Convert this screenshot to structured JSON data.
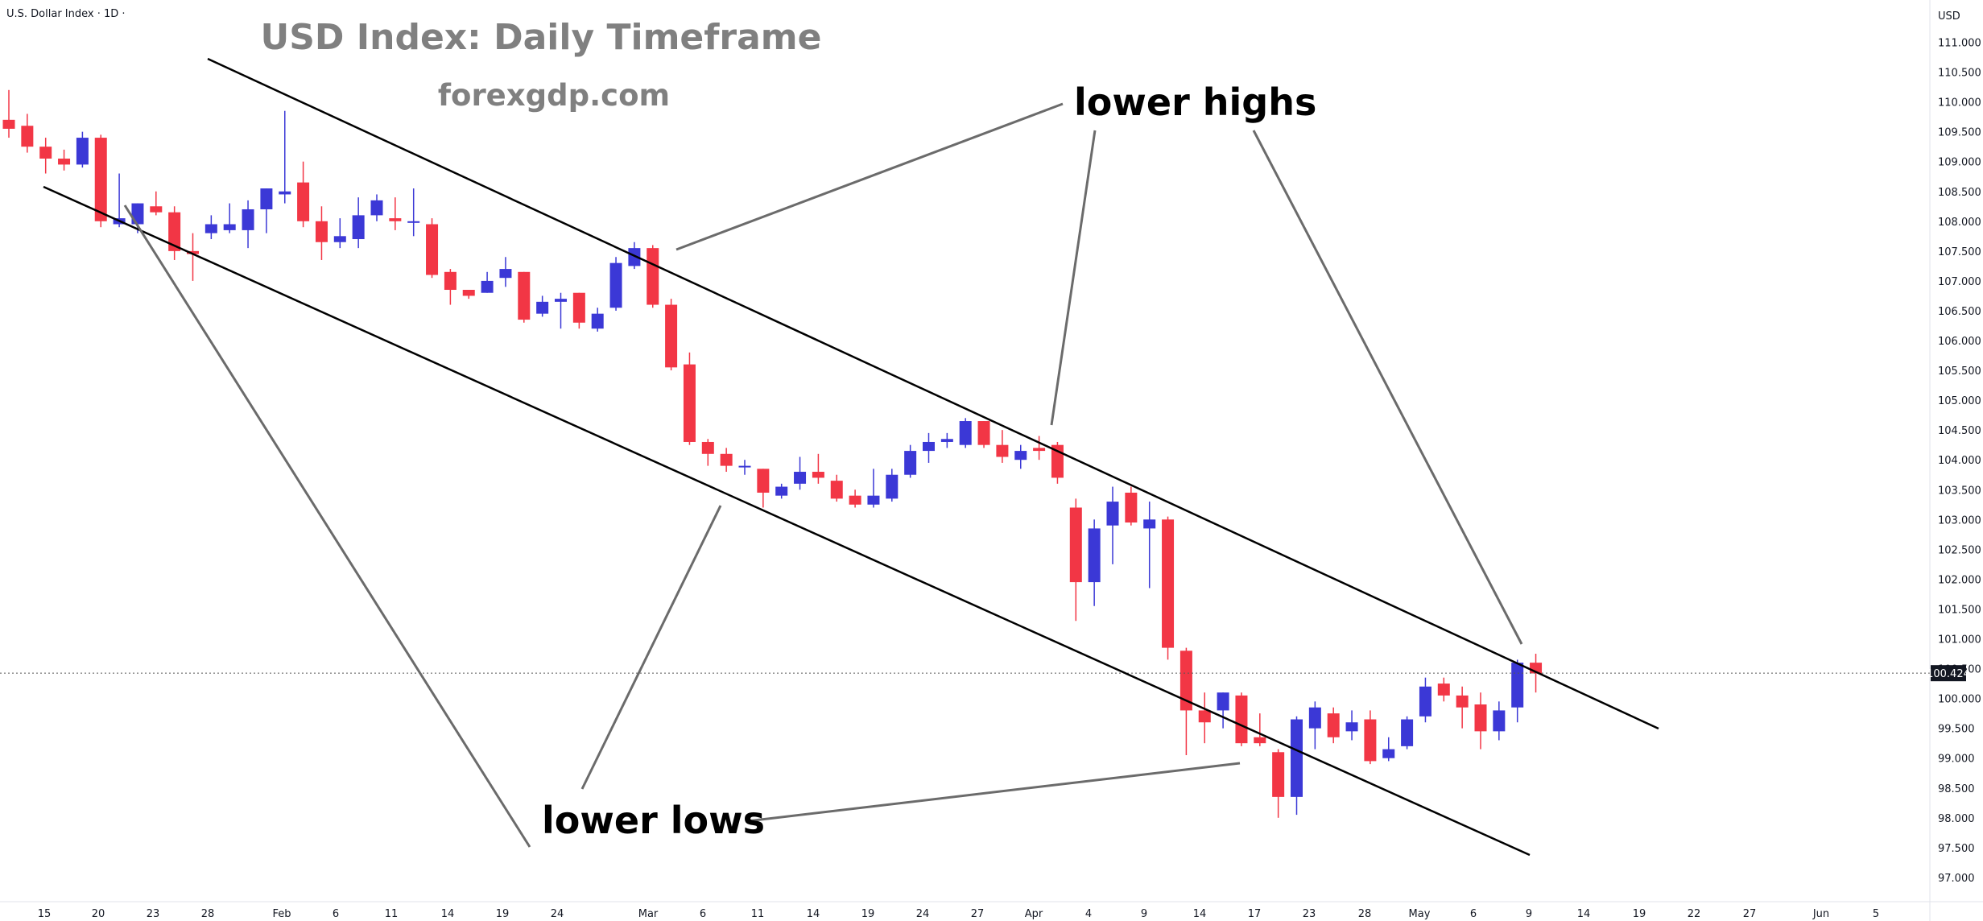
{
  "header": {
    "symbol_label": "U.S. Dollar Index · 1D ·",
    "currency_label": "USD"
  },
  "chart_data": {
    "type": "candlestick",
    "title": "USD Index: Daily Timeframe",
    "subtitle": "forexgdp.com",
    "current_price": "100.424",
    "ylim": [
      96.8,
      111.5
    ],
    "y_ticks": [
      "111.000",
      "110.500",
      "110.000",
      "109.500",
      "109.000",
      "108.500",
      "108.000",
      "107.500",
      "107.000",
      "106.500",
      "106.000",
      "105.500",
      "105.000",
      "104.500",
      "104.000",
      "103.500",
      "103.000",
      "102.500",
      "102.000",
      "101.500",
      "101.000",
      "100.500",
      "100.000",
      "99.500",
      "99.000",
      "98.500",
      "98.000",
      "97.500",
      "97.000"
    ],
    "x_ticks": [
      "15",
      "20",
      "23",
      "28",
      "Feb",
      "6",
      "11",
      "14",
      "19",
      "24",
      "Mar",
      "6",
      "11",
      "14",
      "19",
      "24",
      "27",
      "Apr",
      "4",
      "9",
      "14",
      "17",
      "23",
      "28",
      "May",
      "6",
      "9",
      "14",
      "19",
      "22",
      "27",
      "Jun",
      "5"
    ],
    "annotations": [
      "lower highs",
      "lower lows"
    ],
    "colors": {
      "up": "#3b38d6",
      "down": "#f23645",
      "line": "#000000",
      "arrow": "#6b6b6b"
    },
    "candles": [
      {
        "o": 109.7,
        "h": 110.2,
        "l": 109.4,
        "c": 109.55
      },
      {
        "o": 109.6,
        "h": 109.8,
        "l": 109.15,
        "c": 109.25
      },
      {
        "o": 109.25,
        "h": 109.4,
        "l": 108.8,
        "c": 109.05
      },
      {
        "o": 109.05,
        "h": 109.2,
        "l": 108.85,
        "c": 108.95
      },
      {
        "o": 108.95,
        "h": 109.5,
        "l": 108.9,
        "c": 109.4
      },
      {
        "o": 109.4,
        "h": 109.45,
        "l": 107.9,
        "c": 108.0
      },
      {
        "o": 107.95,
        "h": 108.8,
        "l": 107.9,
        "c": 108.05
      },
      {
        "o": 107.95,
        "h": 108.3,
        "l": 107.8,
        "c": 108.3
      },
      {
        "o": 108.25,
        "h": 108.5,
        "l": 108.1,
        "c": 108.15
      },
      {
        "o": 108.15,
        "h": 108.25,
        "l": 107.35,
        "c": 107.5
      },
      {
        "o": 107.5,
        "h": 107.8,
        "l": 107.0,
        "c": 107.45
      },
      {
        "o": 107.8,
        "h": 108.1,
        "l": 107.7,
        "c": 107.95
      },
      {
        "o": 107.85,
        "h": 108.3,
        "l": 107.8,
        "c": 107.95
      },
      {
        "o": 107.85,
        "h": 108.35,
        "l": 107.55,
        "c": 108.2
      },
      {
        "o": 108.2,
        "h": 108.55,
        "l": 107.8,
        "c": 108.55
      },
      {
        "o": 108.45,
        "h": 109.85,
        "l": 108.3,
        "c": 108.5
      },
      {
        "o": 108.65,
        "h": 109.0,
        "l": 107.9,
        "c": 108.0
      },
      {
        "o": 108.0,
        "h": 108.25,
        "l": 107.35,
        "c": 107.65
      },
      {
        "o": 107.65,
        "h": 108.05,
        "l": 107.55,
        "c": 107.75
      },
      {
        "o": 107.7,
        "h": 108.4,
        "l": 107.55,
        "c": 108.1
      },
      {
        "o": 108.1,
        "h": 108.45,
        "l": 108.0,
        "c": 108.35
      },
      {
        "o": 108.05,
        "h": 108.4,
        "l": 107.85,
        "c": 108.0
      },
      {
        "o": 108.0,
        "h": 108.55,
        "l": 107.75,
        "c": 108.0
      },
      {
        "o": 107.95,
        "h": 108.05,
        "l": 107.05,
        "c": 107.1
      },
      {
        "o": 107.15,
        "h": 107.2,
        "l": 106.6,
        "c": 106.85
      },
      {
        "o": 106.85,
        "h": 106.85,
        "l": 106.7,
        "c": 106.75
      },
      {
        "o": 106.8,
        "h": 107.15,
        "l": 106.8,
        "c": 107.0
      },
      {
        "o": 107.05,
        "h": 107.4,
        "l": 106.9,
        "c": 107.2
      },
      {
        "o": 107.15,
        "h": 107.15,
        "l": 106.3,
        "c": 106.35
      },
      {
        "o": 106.45,
        "h": 106.75,
        "l": 106.4,
        "c": 106.65
      },
      {
        "o": 106.65,
        "h": 106.8,
        "l": 106.2,
        "c": 106.7
      },
      {
        "o": 106.8,
        "h": 106.8,
        "l": 106.2,
        "c": 106.3
      },
      {
        "o": 106.2,
        "h": 106.55,
        "l": 106.15,
        "c": 106.45
      },
      {
        "o": 106.55,
        "h": 107.4,
        "l": 106.5,
        "c": 107.3
      },
      {
        "o": 107.25,
        "h": 107.65,
        "l": 107.2,
        "c": 107.55
      },
      {
        "o": 107.55,
        "h": 107.6,
        "l": 106.55,
        "c": 106.6
      },
      {
        "o": 106.6,
        "h": 106.7,
        "l": 105.5,
        "c": 105.55
      },
      {
        "o": 105.6,
        "h": 105.8,
        "l": 104.25,
        "c": 104.3
      },
      {
        "o": 104.3,
        "h": 104.35,
        "l": 103.9,
        "c": 104.1
      },
      {
        "o": 104.1,
        "h": 104.2,
        "l": 103.8,
        "c": 103.9
      },
      {
        "o": 103.9,
        "h": 104.0,
        "l": 103.75,
        "c": 103.9
      },
      {
        "o": 103.85,
        "h": 103.85,
        "l": 103.2,
        "c": 103.45
      },
      {
        "o": 103.4,
        "h": 103.6,
        "l": 103.35,
        "c": 103.55
      },
      {
        "o": 103.6,
        "h": 104.05,
        "l": 103.5,
        "c": 103.8
      },
      {
        "o": 103.8,
        "h": 104.1,
        "l": 103.6,
        "c": 103.7
      },
      {
        "o": 103.65,
        "h": 103.75,
        "l": 103.3,
        "c": 103.35
      },
      {
        "o": 103.4,
        "h": 103.5,
        "l": 103.2,
        "c": 103.25
      },
      {
        "o": 103.25,
        "h": 103.85,
        "l": 103.2,
        "c": 103.4
      },
      {
        "o": 103.35,
        "h": 103.85,
        "l": 103.3,
        "c": 103.75
      },
      {
        "o": 103.75,
        "h": 104.25,
        "l": 103.7,
        "c": 104.15
      },
      {
        "o": 104.15,
        "h": 104.45,
        "l": 103.95,
        "c": 104.3
      },
      {
        "o": 104.3,
        "h": 104.45,
        "l": 104.2,
        "c": 104.35
      },
      {
        "o": 104.25,
        "h": 104.7,
        "l": 104.2,
        "c": 104.65
      },
      {
        "o": 104.65,
        "h": 104.65,
        "l": 104.2,
        "c": 104.25
      },
      {
        "o": 104.25,
        "h": 104.5,
        "l": 103.95,
        "c": 104.05
      },
      {
        "o": 104.0,
        "h": 104.25,
        "l": 103.85,
        "c": 104.15
      },
      {
        "o": 104.2,
        "h": 104.4,
        "l": 104.0,
        "c": 104.15
      },
      {
        "o": 104.25,
        "h": 104.3,
        "l": 103.6,
        "c": 103.7
      },
      {
        "o": 103.2,
        "h": 103.35,
        "l": 101.3,
        "c": 101.95
      },
      {
        "o": 101.95,
        "h": 103.0,
        "l": 101.55,
        "c": 102.85
      },
      {
        "o": 102.9,
        "h": 103.55,
        "l": 102.25,
        "c": 103.3
      },
      {
        "o": 103.45,
        "h": 103.55,
        "l": 102.9,
        "c": 102.95
      },
      {
        "o": 102.85,
        "h": 103.3,
        "l": 101.85,
        "c": 103.0
      },
      {
        "o": 103.0,
        "h": 103.05,
        "l": 100.65,
        "c": 100.85
      },
      {
        "o": 100.8,
        "h": 100.85,
        "l": 99.05,
        "c": 99.8
      },
      {
        "o": 99.8,
        "h": 100.1,
        "l": 99.25,
        "c": 99.6
      },
      {
        "o": 99.8,
        "h": 100.1,
        "l": 99.5,
        "c": 100.1
      },
      {
        "o": 100.05,
        "h": 100.1,
        "l": 99.2,
        "c": 99.25
      },
      {
        "o": 99.35,
        "h": 99.75,
        "l": 99.2,
        "c": 99.25
      },
      {
        "o": 99.1,
        "h": 99.15,
        "l": 98.0,
        "c": 98.35
      },
      {
        "o": 98.35,
        "h": 99.7,
        "l": 98.05,
        "c": 99.65
      },
      {
        "o": 99.5,
        "h": 99.95,
        "l": 99.15,
        "c": 99.85
      },
      {
        "o": 99.75,
        "h": 99.85,
        "l": 99.25,
        "c": 99.35
      },
      {
        "o": 99.45,
        "h": 99.8,
        "l": 99.3,
        "c": 99.6
      },
      {
        "o": 99.65,
        "h": 99.8,
        "l": 98.9,
        "c": 98.95
      },
      {
        "o": 99.0,
        "h": 99.35,
        "l": 98.95,
        "c": 99.15
      },
      {
        "o": 99.2,
        "h": 99.7,
        "l": 99.15,
        "c": 99.65
      },
      {
        "o": 99.7,
        "h": 100.35,
        "l": 99.6,
        "c": 100.2
      },
      {
        "o": 100.25,
        "h": 100.35,
        "l": 99.95,
        "c": 100.05
      },
      {
        "o": 100.05,
        "h": 100.2,
        "l": 99.5,
        "c": 99.85
      },
      {
        "o": 99.9,
        "h": 100.1,
        "l": 99.15,
        "c": 99.45
      },
      {
        "o": 99.45,
        "h": 99.95,
        "l": 99.3,
        "c": 99.8
      },
      {
        "o": 99.85,
        "h": 100.65,
        "l": 99.6,
        "c": 100.6
      },
      {
        "o": 100.6,
        "h": 100.75,
        "l": 100.1,
        "c": 100.42
      }
    ]
  }
}
